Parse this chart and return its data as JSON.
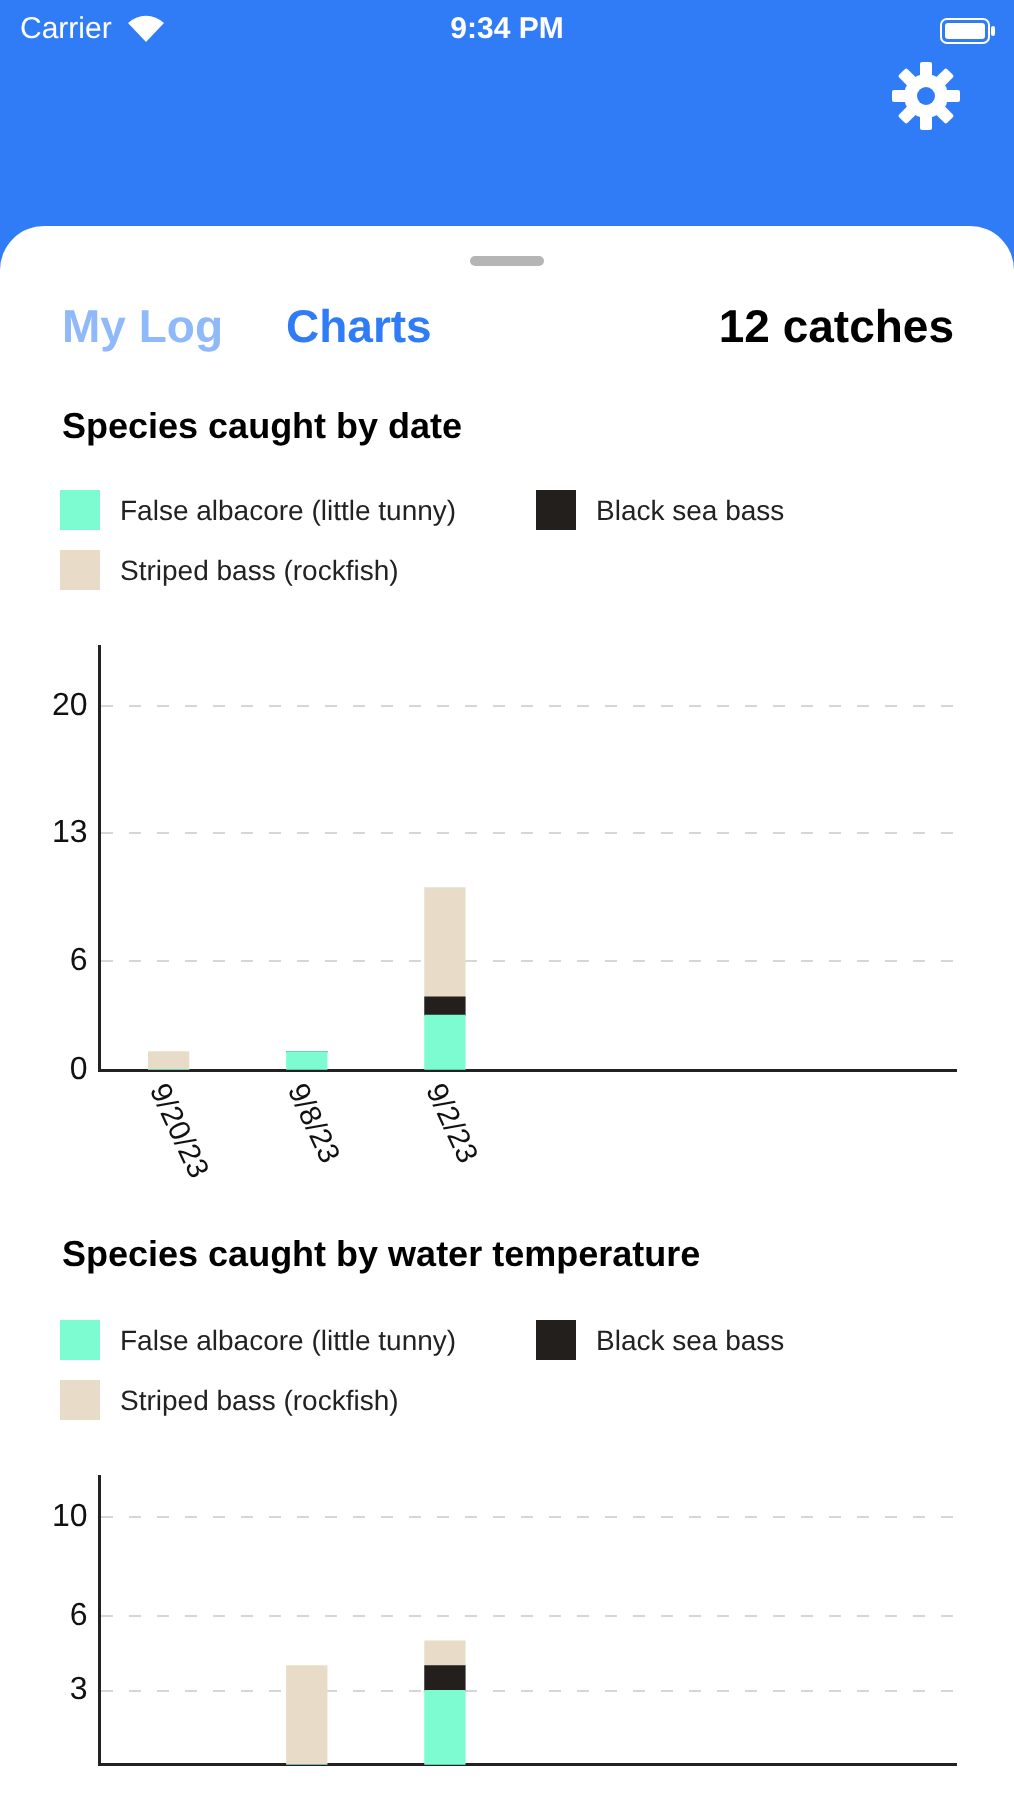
{
  "chart_data": [
    {
      "type": "other",
      "annotations": [
        "Carrier",
        "9:34 PM",
        "My Log",
        "Charts",
        "12 catches"
      ]
    },
    {
      "type": "bar",
      "title": "Species caught by date",
      "categories": [
        "9/20/23",
        "9/8/23",
        "9/2/23"
      ],
      "stacked": true,
      "series": [
        {
          "name": "False albacore (little tunny)",
          "color": "#7dfcd2",
          "values": [
            0,
            1,
            3
          ]
        },
        {
          "name": "Black sea bass",
          "color": "#231f1c",
          "values": [
            0,
            0,
            1
          ]
        },
        {
          "name": "Striped bass (rockfish)",
          "color": "#e8dcc8",
          "values": [
            1,
            0,
            6
          ]
        }
      ],
      "ylim": [
        0,
        23.3
      ],
      "yticks": [
        0,
        6,
        13,
        20
      ],
      "grid": "y",
      "legend": "top"
    },
    {
      "type": "bar",
      "title": "Species caught by water temperature",
      "categories": [
        null,
        null,
        null
      ],
      "stacked": true,
      "series": [
        {
          "name": "False albacore (little tunny)",
          "color": "#7dfcd2",
          "values": [
            null,
            0,
            3
          ]
        },
        {
          "name": "Black sea bass",
          "color": "#231f1c",
          "values": [
            null,
            0,
            1
          ]
        },
        {
          "name": "Striped bass (rockfish)",
          "color": "#e8dcc8",
          "values": [
            null,
            4,
            1
          ]
        }
      ],
      "ylim": [
        0,
        11.67
      ],
      "yticks": [
        3,
        6,
        10
      ],
      "grid": "y",
      "legend": "top"
    }
  ]
}
